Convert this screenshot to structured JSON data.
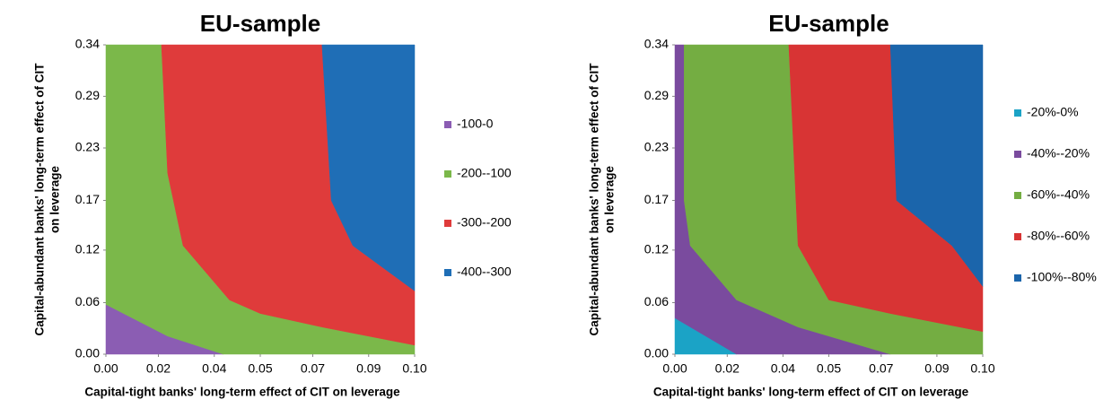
{
  "chart_data": [
    {
      "type": "contour",
      "title": "EU-sample",
      "xlabel": "Capital-tight banks' long-term effect of CIT on leverage",
      "ylabel": [
        "Capital-abundant banks' long-term effect of CIT",
        "on leverage"
      ],
      "xlim": [
        0,
        0.1
      ],
      "ylim": [
        0,
        0.342
      ],
      "xticks": [
        {
          "value": 0,
          "label": "0.00"
        },
        {
          "value": 0.017,
          "label": "0.02"
        },
        {
          "value": 0.0351,
          "label": "0.04"
        },
        {
          "value": 0.05,
          "label": "0.05"
        },
        {
          "value": 0.067,
          "label": "0.07"
        },
        {
          "value": 0.0851,
          "label": "0.09"
        },
        {
          "value": 0.1,
          "label": "0.10"
        }
      ],
      "yticks": [
        {
          "value": 0,
          "label": "0.00"
        },
        {
          "value": 0.057,
          "label": "0.06"
        },
        {
          "value": 0.1151,
          "label": "0.12"
        },
        {
          "value": 0.17,
          "label": "0.17"
        },
        {
          "value": 0.228,
          "label": "0.23"
        },
        {
          "value": 0.2851,
          "label": "0.29"
        },
        {
          "value": 0.342,
          "label": "0.34"
        }
      ],
      "series": [
        {
          "name": "-100-0",
          "color": "#8b5db3",
          "x": [
            0,
            0.038,
            0.02,
            0
          ],
          "y": [
            0,
            0,
            0.02,
            0.055
          ]
        },
        {
          "name": "-200--100",
          "color": "#7bb84a",
          "x": [
            0,
            0.02,
            0.038,
            0.1,
            0.1,
            0.085,
            0.07,
            0.05,
            0.04,
            0.025,
            0.02,
            0.018,
            0
          ],
          "y": [
            0.055,
            0.02,
            0,
            0,
            0.01,
            0.02,
            0.03,
            0.045,
            0.06,
            0.12,
            0.2,
            0.342,
            0.342
          ]
        },
        {
          "name": "-300--200",
          "color": "#df3b3b",
          "x": [
            0.018,
            0.02,
            0.025,
            0.04,
            0.05,
            0.07,
            0.085,
            0.1,
            0.1,
            0.08,
            0.073,
            0.07
          ],
          "y": [
            0.342,
            0.2,
            0.12,
            0.06,
            0.045,
            0.03,
            0.02,
            0.01,
            0.07,
            0.12,
            0.17,
            0.342
          ]
        },
        {
          "name": "-400--300",
          "color": "#1f6eb6",
          "x": [
            0.07,
            0.073,
            0.08,
            0.1,
            0.1
          ],
          "y": [
            0.342,
            0.17,
            0.12,
            0.07,
            0.342
          ]
        }
      ]
    },
    {
      "type": "contour",
      "title": "EU-sample",
      "xlabel": "Capital-tight banks' long-term effect of CIT on leverage",
      "ylabel": [
        "Capital-abundant banks' long-term effect of CIT",
        "on leverage"
      ],
      "xlim": [
        0,
        0.1
      ],
      "ylim": [
        0,
        0.342
      ],
      "xticks": [
        {
          "value": 0,
          "label": "0.00"
        },
        {
          "value": 0.017,
          "label": "0.02"
        },
        {
          "value": 0.0351,
          "label": "0.04"
        },
        {
          "value": 0.05,
          "label": "0.05"
        },
        {
          "value": 0.067,
          "label": "0.07"
        },
        {
          "value": 0.0851,
          "label": "0.09"
        },
        {
          "value": 0.1,
          "label": "0.10"
        }
      ],
      "yticks": [
        {
          "value": 0,
          "label": "0.00"
        },
        {
          "value": 0.057,
          "label": "0.06"
        },
        {
          "value": 0.1151,
          "label": "0.12"
        },
        {
          "value": 0.17,
          "label": "0.17"
        },
        {
          "value": 0.228,
          "label": "0.23"
        },
        {
          "value": 0.2851,
          "label": "0.29"
        },
        {
          "value": 0.342,
          "label": "0.34"
        }
      ],
      "series": [
        {
          "name": "-20%-0%",
          "color": "#1ba3c6",
          "x": [
            0,
            0.02,
            0
          ],
          "y": [
            0,
            0,
            0.04
          ]
        },
        {
          "name": "-40%--20%",
          "color": "#7a4b9e",
          "x": [
            0,
            0.02,
            0.07,
            0.04,
            0.02,
            0.005,
            0.003,
            0.003,
            0
          ],
          "y": [
            0.04,
            0,
            0,
            0.03,
            0.06,
            0.12,
            0.17,
            0.342,
            0.342
          ]
        },
        {
          "name": "-60%--40%",
          "color": "#74ad42",
          "x": [
            0.003,
            0.003,
            0.005,
            0.02,
            0.04,
            0.07,
            0.1,
            0.1,
            0.085,
            0.07,
            0.05,
            0.04,
            0.037
          ],
          "y": [
            0.342,
            0.17,
            0.12,
            0.06,
            0.03,
            0,
            0,
            0.025,
            0.035,
            0.045,
            0.06,
            0.12,
            0.342
          ]
        },
        {
          "name": "-80%--60%",
          "color": "#d83434",
          "x": [
            0.037,
            0.04,
            0.05,
            0.07,
            0.085,
            0.1,
            0.1,
            0.09,
            0.072,
            0.07
          ],
          "y": [
            0.342,
            0.12,
            0.06,
            0.045,
            0.035,
            0.025,
            0.075,
            0.12,
            0.17,
            0.342
          ]
        },
        {
          "name": "-100%--80%",
          "color": "#1b65ab",
          "x": [
            0.07,
            0.072,
            0.09,
            0.1,
            0.1
          ],
          "y": [
            0.342,
            0.17,
            0.12,
            0.075,
            0.342
          ]
        }
      ]
    }
  ]
}
